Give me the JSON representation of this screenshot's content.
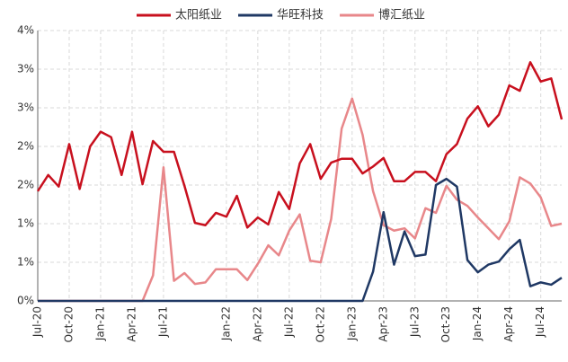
{
  "chart_data": {
    "type": "line",
    "categories": [
      "Jul-20",
      null,
      null,
      "Oct-20",
      null,
      null,
      "Jan-21",
      null,
      null,
      "Apr-21",
      null,
      null,
      "Jul-21",
      null,
      null,
      null,
      null,
      null,
      "Jan-22",
      null,
      null,
      "Apr-22",
      null,
      null,
      "Jul-22",
      null,
      null,
      "Oct-22",
      null,
      null,
      "Jan-23",
      null,
      null,
      "Apr-23",
      null,
      null,
      "Jul-23",
      null,
      null,
      "Oct-23",
      null,
      null,
      "Jan-24",
      null,
      null,
      "Apr-24",
      null,
      null,
      "Jul-24",
      null,
      null
    ],
    "series": [
      {
        "name": "太阳纸业",
        "color": "#c8101e",
        "values": [
          1.42,
          1.63,
          1.48,
          2.03,
          1.45,
          2.0,
          2.19,
          2.12,
          1.63,
          2.19,
          1.51,
          2.07,
          1.93,
          1.93,
          1.49,
          1.01,
          0.98,
          1.14,
          1.09,
          1.36,
          0.95,
          1.08,
          0.99,
          1.41,
          1.19,
          1.78,
          2.03,
          1.58,
          1.79,
          1.84,
          1.84,
          1.65,
          1.74,
          1.85,
          1.55,
          1.55,
          1.67,
          1.67,
          1.55,
          1.9,
          2.03,
          2.36,
          2.52,
          2.26,
          2.41,
          2.79,
          2.72,
          3.09,
          2.84,
          2.88,
          2.35
        ]
      },
      {
        "name": "华旺科技",
        "color": "#1f3864",
        "values": [
          0,
          0,
          0,
          0,
          0,
          0,
          0,
          0,
          0,
          0,
          0,
          0,
          0,
          0,
          0,
          0,
          0,
          0,
          0,
          0,
          0,
          0,
          0,
          0,
          0,
          0,
          0,
          0,
          0,
          0,
          0,
          0,
          0.38,
          1.15,
          0.47,
          0.9,
          0.58,
          0.6,
          1.5,
          1.58,
          1.48,
          0.53,
          0.37,
          0.47,
          0.51,
          0.67,
          0.79,
          0.19,
          0.24,
          0.21,
          0.3
        ]
      },
      {
        "name": "博汇纸业",
        "color": "#e8878a",
        "values": [
          0,
          0,
          0,
          0,
          0,
          0,
          0,
          0,
          0,
          0,
          0,
          0.33,
          1.73,
          0.26,
          0.36,
          0.22,
          0.24,
          0.41,
          0.41,
          0.41,
          0.27,
          0.48,
          0.72,
          0.59,
          0.91,
          1.12,
          0.52,
          0.5,
          1.06,
          2.23,
          2.62,
          2.15,
          1.42,
          0.98,
          0.91,
          0.94,
          0.81,
          1.2,
          1.14,
          1.49,
          1.31,
          1.23,
          1.08,
          0.94,
          0.8,
          1.03,
          1.6,
          1.52,
          1.34,
          0.97,
          1.0
        ]
      }
    ],
    "ylim": [
      0,
      3.5
    ],
    "yticks": [
      {
        "value": 0,
        "label": "0%"
      },
      {
        "value": 0.5,
        "label": "1%"
      },
      {
        "value": 1,
        "label": "1%"
      },
      {
        "value": 1.5,
        "label": "2%"
      },
      {
        "value": 2,
        "label": "2%"
      },
      {
        "value": 2.5,
        "label": "3%"
      },
      {
        "value": 3,
        "label": "3%"
      },
      {
        "value": 3.5,
        "label": "4%"
      }
    ],
    "grid": true,
    "legend": "top"
  }
}
